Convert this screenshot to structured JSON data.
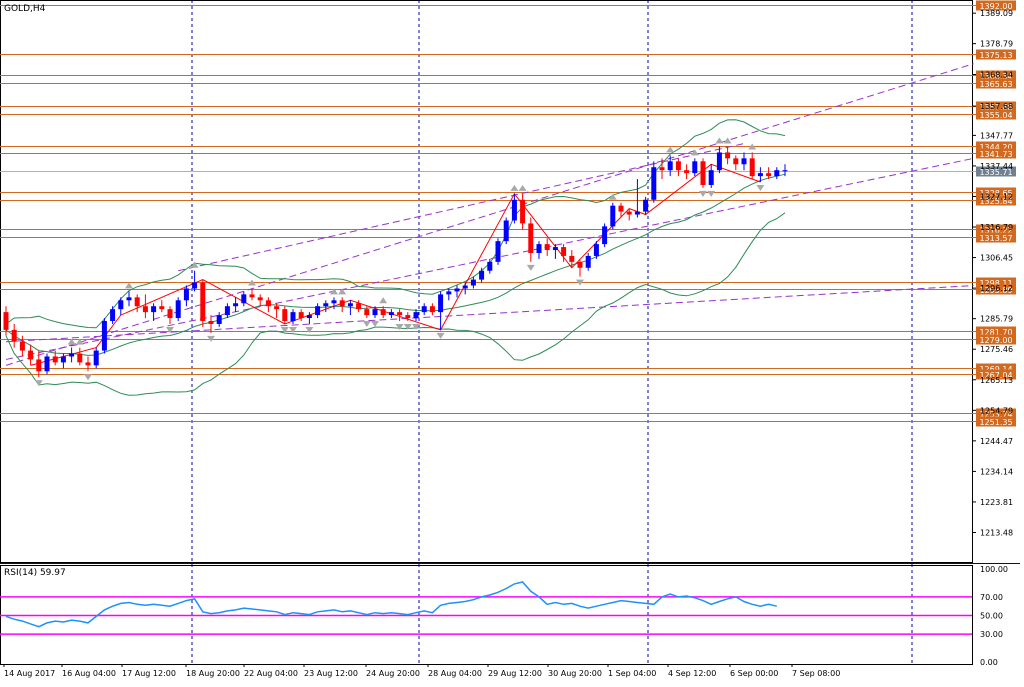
{
  "header": {
    "symbol_label": "GOLD,H4"
  },
  "rsi_header": {
    "label": "RSI(14) 59.97"
  },
  "colors": {
    "bull_candle": "#0000ff",
    "bear_candle": "#ff0000",
    "level_line": "#d2691e",
    "level_label_bg": "#d2691e",
    "current_label_bg": "#708090",
    "channel_line": "#9932cc",
    "bollinger": "#2e8b57",
    "zigzag_red": "#ff0000",
    "zigzag_blue": "#1e90ff",
    "rsi_line": "#1e90ff",
    "rsi_level": "#ff00ff",
    "grid_vertical": "#0000aa",
    "fractal": "#a9a9a9"
  },
  "chart_data": [
    {
      "type": "candlestick",
      "title": "GOLD,H4",
      "ylim": [
        1203.5,
        1392.2
      ],
      "price_axis_ticks": [
        "1389.09",
        "1378.79",
        "1368.34",
        "1357.68",
        "1347.77",
        "1337.44",
        "1327.12",
        "1316.79",
        "1306.45",
        "1296.12",
        "1285.79",
        "1275.46",
        "1265.13",
        "1254.79",
        "1244.47",
        "1234.14",
        "1223.81",
        "1213.48"
      ],
      "time_axis_labels": [
        "14 Aug 2017",
        "16 Aug 04:00",
        "17 Aug 12:00",
        "18 Aug 20:00",
        "22 Aug 04:00",
        "23 Aug 12:00",
        "24 Aug 20:00",
        "28 Aug 04:00",
        "29 Aug 12:00",
        "30 Aug 20:00",
        "1 Sep 04:00",
        "4 Sep 12:00",
        "6 Sep 00:00",
        "7 Sep 08:00"
      ],
      "current_price": "1335.71",
      "top_label": "1392.00",
      "horizontal_levels": [
        "1375.13",
        "1368.34",
        "1365.63",
        "1357.68",
        "1355.04",
        "1344.20",
        "1341.73",
        "1328.65",
        "1325.84",
        "1316.22",
        "1313.57",
        "1298.11",
        "1295.89",
        "1281.70",
        "1279.00",
        "1269.14",
        "1267.04",
        "1253.74",
        "1251.35"
      ],
      "candles_ohlc": [
        [
          1288,
          1290,
          1280,
          1282
        ],
        [
          1282,
          1284,
          1276,
          1278
        ],
        [
          1278,
          1280,
          1273,
          1275
        ],
        [
          1275,
          1277,
          1270,
          1272
        ],
        [
          1272,
          1275,
          1266,
          1268
        ],
        [
          1268,
          1274,
          1267,
          1273
        ],
        [
          1273,
          1275,
          1270,
          1271
        ],
        [
          1271,
          1274,
          1269,
          1273
        ],
        [
          1273,
          1276,
          1271,
          1274
        ],
        [
          1274,
          1276,
          1270,
          1271
        ],
        [
          1271,
          1273,
          1268,
          1270
        ],
        [
          1270,
          1276,
          1269,
          1275
        ],
        [
          1275,
          1286,
          1274,
          1285
        ],
        [
          1285,
          1290,
          1284,
          1289
        ],
        [
          1289,
          1293,
          1287,
          1292
        ],
        [
          1292,
          1295,
          1290,
          1293
        ],
        [
          1293,
          1294,
          1288,
          1290
        ],
        [
          1290,
          1294,
          1286,
          1288
        ],
        [
          1288,
          1291,
          1285,
          1290
        ],
        [
          1290,
          1292,
          1288,
          1289
        ],
        [
          1289,
          1290,
          1284,
          1286
        ],
        [
          1286,
          1293,
          1285,
          1292
        ],
        [
          1292,
          1297,
          1290,
          1296
        ],
        [
          1296,
          1302,
          1295,
          1298
        ],
        [
          1298,
          1299,
          1283,
          1285
        ],
        [
          1285,
          1287,
          1281,
          1284
        ],
        [
          1284,
          1288,
          1283,
          1287
        ],
        [
          1287,
          1291,
          1286,
          1290
        ],
        [
          1290,
          1293,
          1288,
          1291
        ],
        [
          1291,
          1295,
          1290,
          1294
        ],
        [
          1294,
          1296,
          1292,
          1293
        ],
        [
          1293,
          1294,
          1290,
          1292
        ],
        [
          1292,
          1293,
          1288,
          1290
        ],
        [
          1290,
          1291,
          1286,
          1289
        ],
        [
          1289,
          1290,
          1284,
          1285
        ],
        [
          1285,
          1289,
          1284,
          1288
        ],
        [
          1288,
          1289,
          1285,
          1286
        ],
        [
          1286,
          1288,
          1284,
          1287
        ],
        [
          1287,
          1291,
          1286,
          1290
        ],
        [
          1290,
          1292,
          1288,
          1291
        ],
        [
          1291,
          1293,
          1289,
          1292
        ],
        [
          1292,
          1293,
          1288,
          1290
        ],
        [
          1290,
          1292,
          1287,
          1291
        ],
        [
          1291,
          1292,
          1288,
          1289
        ],
        [
          1289,
          1290,
          1286,
          1287
        ],
        [
          1287,
          1290,
          1286,
          1289
        ],
        [
          1289,
          1290,
          1286,
          1287
        ],
        [
          1287,
          1289,
          1286,
          1288
        ],
        [
          1288,
          1289,
          1285,
          1287
        ],
        [
          1287,
          1288,
          1285,
          1286
        ],
        [
          1286,
          1289,
          1285,
          1288
        ],
        [
          1288,
          1291,
          1287,
          1290
        ],
        [
          1290,
          1291,
          1287,
          1288
        ],
        [
          1288,
          1295,
          1282,
          1294
        ],
        [
          1294,
          1296,
          1292,
          1295
        ],
        [
          1295,
          1297,
          1293,
          1296
        ],
        [
          1296,
          1298,
          1294,
          1297
        ],
        [
          1297,
          1300,
          1296,
          1299
        ],
        [
          1299,
          1303,
          1298,
          1302
        ],
        [
          1302,
          1306,
          1301,
          1305
        ],
        [
          1305,
          1313,
          1304,
          1312
        ],
        [
          1312,
          1320,
          1311,
          1319
        ],
        [
          1319,
          1328,
          1318,
          1326
        ],
        [
          1326,
          1328,
          1316,
          1318
        ],
        [
          1318,
          1320,
          1305,
          1308
        ],
        [
          1308,
          1312,
          1306,
          1311
        ],
        [
          1311,
          1313,
          1307,
          1309
        ],
        [
          1309,
          1311,
          1306,
          1310
        ],
        [
          1310,
          1311,
          1305,
          1307
        ],
        [
          1307,
          1309,
          1303,
          1305
        ],
        [
          1305,
          1306,
          1300,
          1303
        ],
        [
          1303,
          1308,
          1302,
          1307
        ],
        [
          1307,
          1312,
          1306,
          1311
        ],
        [
          1311,
          1318,
          1310,
          1317
        ],
        [
          1317,
          1325,
          1316,
          1324
        ],
        [
          1324,
          1325,
          1320,
          1322
        ],
        [
          1322,
          1323,
          1319,
          1321
        ],
        [
          1321,
          1333,
          1320,
          1322
        ],
        [
          1322,
          1327,
          1321,
          1326
        ],
        [
          1326,
          1339,
          1325,
          1337
        ],
        [
          1337,
          1340,
          1333,
          1336
        ],
        [
          1336,
          1341,
          1334,
          1339
        ],
        [
          1339,
          1340,
          1334,
          1336
        ],
        [
          1336,
          1338,
          1333,
          1335
        ],
        [
          1335,
          1340,
          1334,
          1339
        ],
        [
          1339,
          1340,
          1330,
          1331
        ],
        [
          1331,
          1338,
          1330,
          1336
        ],
        [
          1336,
          1344,
          1335,
          1342
        ],
        [
          1342,
          1344,
          1338,
          1340
        ],
        [
          1340,
          1341,
          1336,
          1338
        ],
        [
          1338,
          1342,
          1336,
          1340
        ],
        [
          1340,
          1342,
          1333,
          1334
        ],
        [
          1334,
          1337,
          1332,
          1335
        ],
        [
          1335,
          1337,
          1333,
          1334
        ],
        [
          1334,
          1337,
          1333,
          1336
        ],
        [
          1336,
          1338,
          1334,
          1336
        ]
      ]
    },
    {
      "type": "line",
      "title": "RSI(14) 59.97",
      "ylim": [
        0,
        100
      ],
      "axis_ticks": [
        "100.00",
        "70.00",
        "50.00",
        "30.00",
        "0.00"
      ],
      "levels": [
        70,
        50,
        30
      ],
      "values": [
        49,
        46,
        44,
        41,
        38,
        42,
        44,
        43,
        45,
        44,
        42,
        49,
        56,
        60,
        63,
        64,
        62,
        61,
        62,
        61,
        60,
        63,
        66,
        68,
        54,
        52,
        53,
        55,
        56,
        58,
        57,
        56,
        55,
        54,
        51,
        53,
        52,
        51,
        54,
        55,
        56,
        54,
        55,
        53,
        51,
        53,
        52,
        53,
        52,
        51,
        53,
        55,
        53,
        61,
        63,
        64,
        65,
        67,
        70,
        72,
        75,
        79,
        84,
        86,
        76,
        70,
        62,
        64,
        62,
        63,
        60,
        58,
        60,
        62,
        64,
        66,
        65,
        64,
        63,
        62,
        70,
        73,
        70,
        71,
        69,
        66,
        62,
        65,
        68,
        70,
        65,
        62,
        60,
        62,
        60
      ]
    }
  ]
}
